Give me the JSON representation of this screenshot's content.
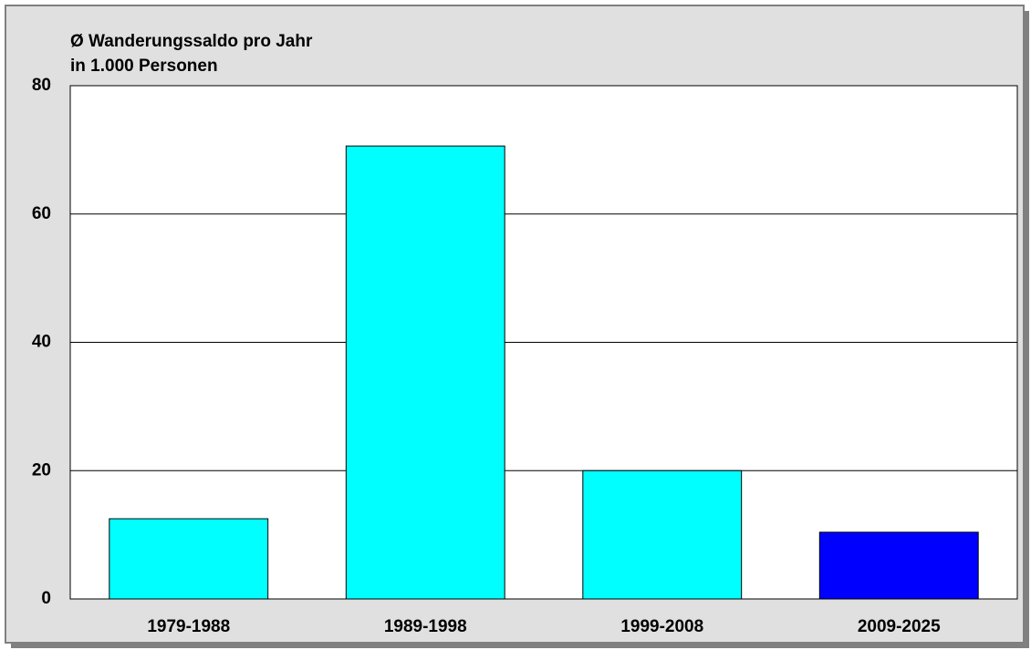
{
  "chart_data": {
    "type": "bar",
    "title": "Ø Wanderungssaldo pro Jahr",
    "subtitle": "in 1.000 Personen",
    "categories": [
      "1979-1988",
      "1989-1998",
      "1999-2008",
      "2009-2025"
    ],
    "values": [
      12.5,
      70.6,
      20,
      10.4
    ],
    "colors": [
      "#00ffff",
      "#00ffff",
      "#00ffff",
      "#0000ff"
    ],
    "ylim": [
      0,
      80
    ],
    "yticks": [
      0,
      20,
      40,
      60,
      80
    ],
    "grid": true
  }
}
